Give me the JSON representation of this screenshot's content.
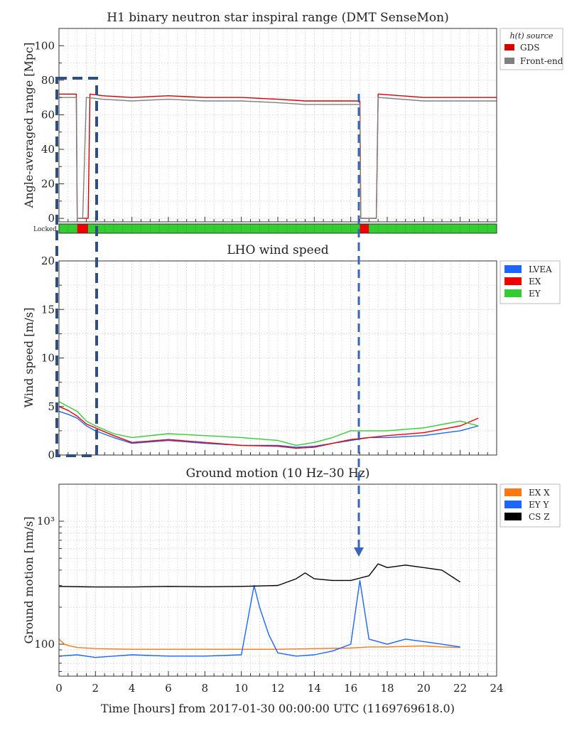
{
  "chart_data": [
    {
      "id": "range",
      "type": "line",
      "title": "H1 binary neutron star inspiral range (DMT SenseMon)",
      "ylabel": "Angle-averaged range [Mpc]",
      "xlim": [
        0,
        24
      ],
      "ylim": [
        -2,
        110
      ],
      "y_ticks": [
        "0",
        "20",
        "40",
        "60",
        "80",
        "100"
      ],
      "legend": {
        "title": "h(t) source",
        "placement": "outside-right",
        "entries": [
          {
            "label": "GDS",
            "color": "#d40000"
          },
          {
            "label": "Front-end",
            "color": "#808080"
          }
        ]
      },
      "series": [
        {
          "name": "GDS",
          "color": "#d40000",
          "x": [
            0,
            0.95,
            1.0,
            1.6,
            1.7,
            2.4,
            4,
            6,
            8,
            10,
            12,
            13.5,
            16.5,
            16.55,
            16.6,
            17.4,
            17.5,
            20,
            24
          ],
          "y": [
            72,
            72,
            0,
            0,
            72,
            71,
            70,
            71,
            70,
            70,
            69,
            68,
            68,
            0,
            0,
            0,
            72,
            70,
            70
          ]
        },
        {
          "name": "Front-end",
          "color": "#808080",
          "x": [
            0,
            0.95,
            1.0,
            1.3,
            1.5,
            2.4,
            4,
            6,
            8,
            10,
            12,
            13.5,
            16.5,
            16.55,
            17.4,
            17.5,
            20,
            24
          ],
          "y": [
            70,
            70,
            0,
            0,
            70,
            69,
            68,
            69,
            68,
            68,
            67,
            66,
            66,
            0,
            0,
            70,
            68,
            68
          ]
        }
      ],
      "locked": {
        "label": "Locked",
        "segments": [
          {
            "start": 0,
            "end": 1.0,
            "state": "locked"
          },
          {
            "start": 1.0,
            "end": 1.6,
            "state": "unlocked"
          },
          {
            "start": 1.6,
            "end": 16.5,
            "state": "locked"
          },
          {
            "start": 16.5,
            "end": 17.0,
            "state": "unlocked"
          },
          {
            "start": 17.0,
            "end": 24,
            "state": "locked"
          }
        ],
        "colors": {
          "locked": "#33cc33",
          "unlocked": "#ee0000"
        }
      }
    },
    {
      "id": "wind",
      "type": "line",
      "title": "LHO wind speed",
      "ylabel": "Wind speed [m/s]",
      "xlim": [
        0,
        24
      ],
      "ylim": [
        0,
        20
      ],
      "y_ticks": [
        "0",
        "5",
        "10",
        "15",
        "20"
      ],
      "legend": {
        "placement": "outside-right",
        "entries": [
          {
            "label": "LVEA",
            "color": "#1a66ff"
          },
          {
            "label": "EX",
            "color": "#ee0000"
          },
          {
            "label": "EY",
            "color": "#33cc33"
          }
        ]
      },
      "series": [
        {
          "name": "LVEA",
          "color": "#1a66ff",
          "x": [
            0,
            0.5,
            1,
            1.5,
            2,
            3,
            4,
            6,
            8,
            10,
            12,
            13,
            14,
            15,
            16,
            17,
            18,
            20,
            22,
            23
          ],
          "y": [
            4.5,
            4.2,
            3.8,
            3.0,
            2.5,
            1.8,
            1.2,
            1.5,
            1.2,
            1.0,
            1.0,
            0.8,
            0.9,
            1.2,
            1.5,
            1.8,
            1.8,
            2.0,
            2.5,
            3.0
          ]
        },
        {
          "name": "EX",
          "color": "#ee0000",
          "x": [
            0,
            0.5,
            1,
            1.5,
            2,
            3,
            4,
            6,
            8,
            10,
            12,
            13,
            14,
            15,
            16,
            17,
            18,
            20,
            22,
            23
          ],
          "y": [
            5.0,
            4.6,
            4.0,
            3.2,
            2.8,
            2.0,
            1.3,
            1.6,
            1.3,
            1.0,
            0.9,
            0.7,
            0.8,
            1.2,
            1.6,
            1.8,
            2.0,
            2.3,
            3.0,
            3.8
          ]
        },
        {
          "name": "EY",
          "color": "#33cc33",
          "x": [
            0,
            0.5,
            1,
            1.5,
            2,
            3,
            4,
            6,
            8,
            10,
            12,
            13,
            14,
            15,
            16,
            17,
            18,
            20,
            22,
            23
          ],
          "y": [
            5.5,
            5.0,
            4.5,
            3.5,
            3.0,
            2.2,
            1.8,
            2.2,
            2.0,
            1.8,
            1.5,
            1.0,
            1.3,
            1.8,
            2.5,
            2.5,
            2.5,
            2.8,
            3.5,
            3.0
          ]
        }
      ]
    },
    {
      "id": "ground",
      "type": "line",
      "title": "Ground motion (10 Hz–30 Hz)",
      "ylabel": "Ground motion [nm/s]",
      "xlabel": "Time [hours] from 2017-01-30 00:00:00 UTC (1169769618.0)",
      "xlim": [
        0,
        24
      ],
      "ylim": [
        55,
        2000
      ],
      "y_scale": "log",
      "x_ticks": [
        "0",
        "2",
        "4",
        "6",
        "8",
        "10",
        "12",
        "14",
        "16",
        "18",
        "20",
        "22",
        "24"
      ],
      "y_ticks": [
        {
          "value": 100,
          "label": "100"
        },
        {
          "value": 1000,
          "label": "10³"
        }
      ],
      "legend": {
        "placement": "outside-right",
        "entries": [
          {
            "label": "EX X",
            "color": "#ff7711"
          },
          {
            "label": "EY Y",
            "color": "#1a66ff"
          },
          {
            "label": "CS Z",
            "color": "#000000"
          }
        ]
      },
      "series": [
        {
          "name": "EX X",
          "color": "#ff7711",
          "x": [
            0,
            0.3,
            0.6,
            1,
            2,
            4,
            6,
            8,
            10,
            12,
            14,
            16,
            17,
            18,
            20,
            21,
            22
          ],
          "y": [
            110,
            100,
            97,
            94,
            92,
            91,
            91,
            91,
            91,
            91,
            92,
            93,
            95,
            95,
            97,
            95,
            94
          ]
        },
        {
          "name": "EY Y",
          "color": "#1a66ff",
          "x": [
            0,
            1,
            2,
            3,
            4,
            6,
            8,
            10,
            10.7,
            11,
            11.5,
            12,
            13,
            14,
            15,
            16,
            16.5,
            17,
            18,
            19,
            20,
            21,
            22
          ],
          "y": [
            80,
            82,
            78,
            80,
            82,
            80,
            80,
            82,
            300,
            200,
            120,
            85,
            80,
            82,
            88,
            100,
            330,
            110,
            100,
            110,
            105,
            100,
            95
          ]
        },
        {
          "name": "CS Z",
          "color": "#000000",
          "x": [
            0,
            2,
            4,
            6,
            8,
            10,
            12,
            13,
            13.5,
            14,
            15,
            16,
            17,
            17.5,
            18,
            19,
            20,
            21,
            22
          ],
          "y": [
            295,
            292,
            292,
            295,
            293,
            295,
            300,
            340,
            380,
            340,
            330,
            330,
            360,
            450,
            420,
            440,
            420,
            400,
            320
          ]
        }
      ]
    }
  ]
}
